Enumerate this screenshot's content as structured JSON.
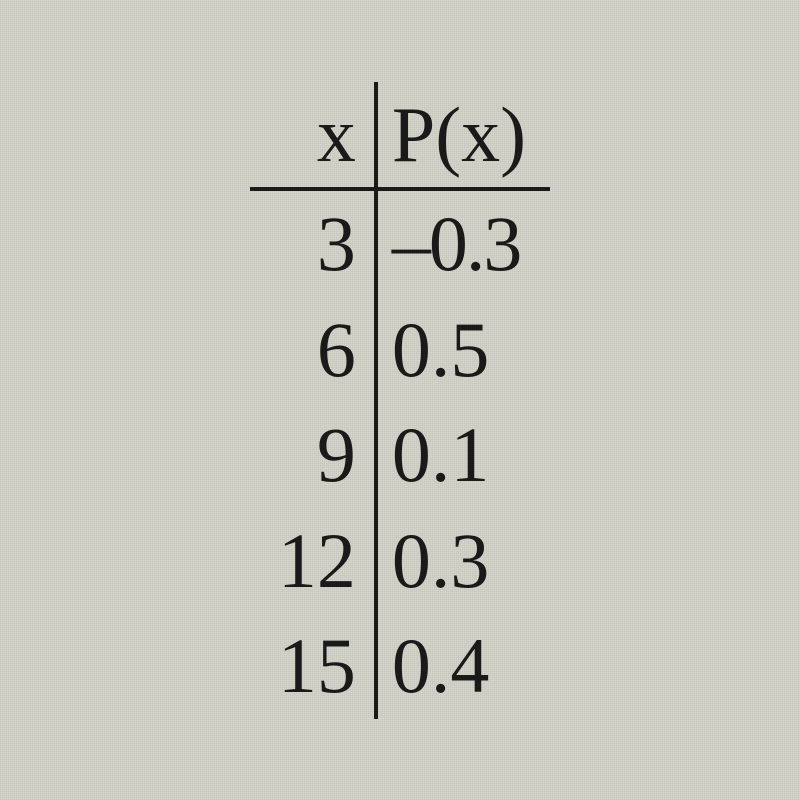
{
  "table": {
    "type": "table",
    "background_color": "#d5d5cb",
    "text_color": "#1a1a1a",
    "rule_color": "#1a1a1a",
    "font_family": "Times New Roman",
    "header_fontsize_pt": 58,
    "cell_fontsize_pt": 58,
    "columns": [
      {
        "key": "x",
        "label": "x",
        "align": "right"
      },
      {
        "key": "p",
        "label": "P(x)",
        "align": "left"
      }
    ],
    "rows": [
      {
        "x": "3",
        "p": "–0.3"
      },
      {
        "x": "6",
        "p": "0.5"
      },
      {
        "x": "9",
        "p": "0.1"
      },
      {
        "x": "12",
        "p": "0.3"
      },
      {
        "x": "15",
        "p": "0.4"
      }
    ]
  }
}
